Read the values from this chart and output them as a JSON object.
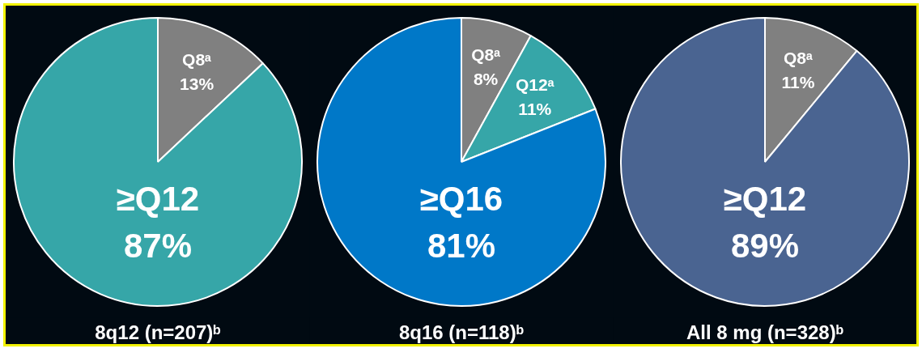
{
  "chart_data": [
    {
      "type": "pie",
      "title": "8q12 (n=207)ᵇ",
      "categories": [
        "Q8ᵃ",
        "≥Q12"
      ],
      "values": [
        13,
        87
      ],
      "colors": [
        "#808080",
        "#36a6a8"
      ],
      "value_labels": [
        "13%",
        "87%"
      ]
    },
    {
      "type": "pie",
      "title": "8q16 (n=118)ᵇ",
      "categories": [
        "Q8ᵃ",
        "Q12ᵃ",
        "≥Q16"
      ],
      "values": [
        8,
        11,
        81
      ],
      "colors": [
        "#808080",
        "#36a6a8",
        "#0078c8"
      ],
      "value_labels": [
        "8%",
        "11%",
        "81%"
      ]
    },
    {
      "type": "pie",
      "title": "All 8 mg (n=328)ᵇ",
      "categories": [
        "Q8ᵃ",
        "≥Q12"
      ],
      "values": [
        11,
        89
      ],
      "colors": [
        "#808080",
        "#4a6491"
      ],
      "value_labels": [
        "11%",
        "89%"
      ]
    }
  ]
}
